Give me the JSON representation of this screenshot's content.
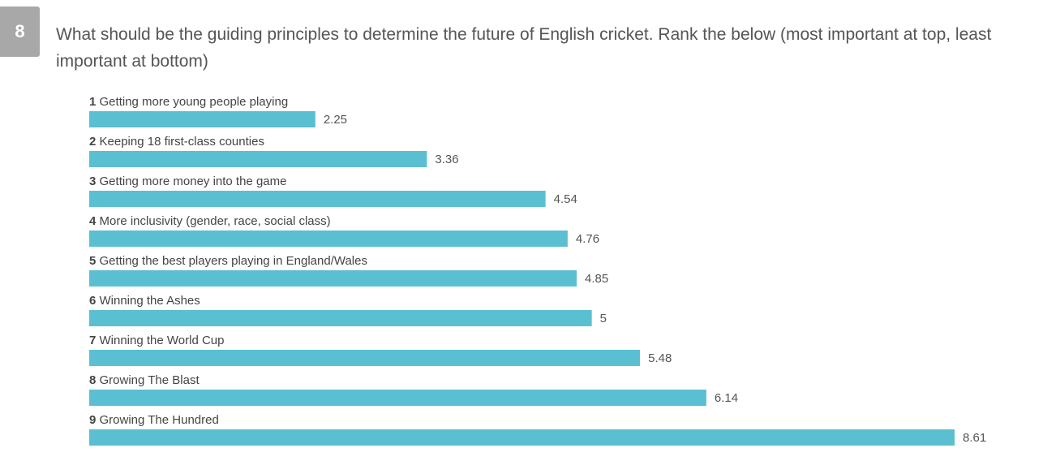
{
  "question": {
    "number": "8",
    "text": "What should be the guiding principles to determine the future of English cricket. Rank the below (most important at top, least important at bottom)"
  },
  "chart_data": {
    "type": "bar",
    "orientation": "horizontal",
    "title": "What should be the guiding principles to determine the future of English cricket. Rank the below (most important at top, least important at bottom)",
    "ranks": [
      "1",
      "2",
      "3",
      "4",
      "5",
      "6",
      "7",
      "8",
      "9"
    ],
    "categories": [
      "Getting more young people playing",
      "Keeping 18 first-class counties",
      "Getting more money into the game",
      "More inclusivity (gender, race, social class)",
      "Getting the best players playing in England/Wales",
      "Winning the Ashes",
      "Winning the World Cup",
      "Growing The Blast",
      "Growing The Hundred"
    ],
    "values": [
      2.25,
      3.36,
      4.54,
      4.76,
      4.85,
      5,
      5.48,
      6.14,
      8.61
    ],
    "value_labels": [
      "2.25",
      "3.36",
      "4.54",
      "4.76",
      "4.85",
      "5",
      "5.48",
      "6.14",
      "8.61"
    ],
    "xlim": [
      0,
      8.61
    ],
    "colors": {
      "bar": "#5bbfd2"
    }
  }
}
